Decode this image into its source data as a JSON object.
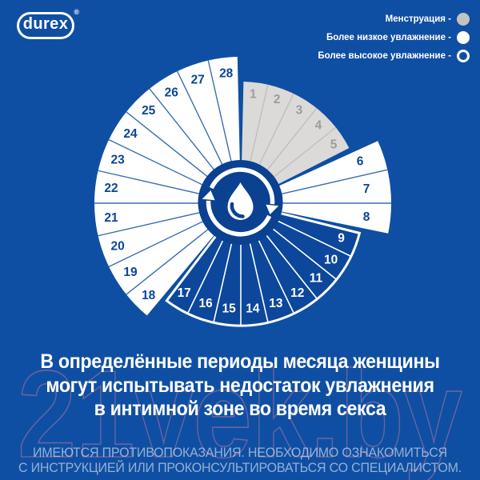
{
  "colors": {
    "background": "#0F4FA3",
    "center_disc": "#0A4190",
    "higher_fill": "#0C479B",
    "lower_fill": "#FFFFFF",
    "menstruation_fill": "#DBDAD8",
    "menstruation_divider": "#C2C1BF",
    "menstruation_number": "#9C9E9E",
    "lower_divider": "#3A6FB4",
    "day_number_blue": "#0A4696",
    "white": "#FFFFFF",
    "watermark_pink": "rgba(228,130,160,0.42)"
  },
  "logo": {
    "text": "durex",
    "registered": "®"
  },
  "legend": {
    "items": [
      {
        "label": "Менструация -",
        "swatch": "gray-filled"
      },
      {
        "label": "Более низкое увлажнение -",
        "swatch": "white-filled"
      },
      {
        "label": "Более высокое увлажнение -",
        "swatch": "white-outline"
      }
    ]
  },
  "wheel": {
    "day_count": 28,
    "groups": [
      {
        "name": "menstruation",
        "days": [
          1,
          2,
          3,
          4,
          5
        ]
      },
      {
        "name": "lower-hydration",
        "days": [
          6,
          7,
          8
        ],
        "emphasized": true
      },
      {
        "name": "higher-hydration",
        "days": [
          9,
          10,
          11,
          12,
          13,
          14,
          15,
          16,
          17
        ]
      },
      {
        "name": "lower-hydration",
        "days": [
          18,
          19,
          20,
          21,
          22,
          23,
          24,
          25,
          26,
          27,
          28
        ]
      }
    ]
  },
  "message": {
    "line1": "В определённые периоды месяца женщины",
    "line2": "могут испытывать недостаток увлажнения",
    "line3": "в интимной зоне во время секса"
  },
  "disclaimer": {
    "line1": "ИМЕЮТСЯ ПРОТИВОПОКАЗАНИЯ. НЕОБХОДИМО ОЗНАКОМИТЬСЯ",
    "line2": "С ИНСТРУКЦИЕЙ ИЛИ ПРОКОНСУЛЬТИРОВАТЬСЯ СО СПЕЦИАЛИСТОМ."
  },
  "watermark": {
    "text": "21vek.by"
  }
}
